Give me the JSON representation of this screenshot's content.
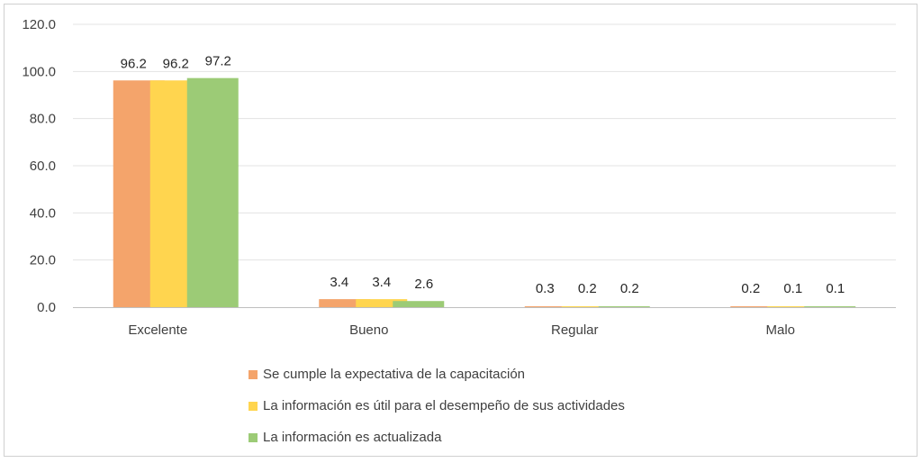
{
  "chart_data": {
    "type": "bar",
    "categories": [
      "Excelente",
      "Bueno",
      "Regular",
      "Malo"
    ],
    "series": [
      {
        "name": "Se cumple la expectativa de la capacitación",
        "color": "#F4A46B",
        "values": [
          96.2,
          3.4,
          0.3,
          0.2
        ]
      },
      {
        "name": "La información es útil para el desempeño de sus actividades",
        "color": "#FFD54F",
        "values": [
          96.2,
          3.4,
          0.2,
          0.1
        ]
      },
      {
        "name": "La información es actualizada",
        "color": "#9CCB76",
        "values": [
          97.2,
          2.6,
          0.2,
          0.1
        ]
      }
    ],
    "value_labels": [
      [
        "96.2",
        "3.4",
        "0.3",
        "0.2"
      ],
      [
        "96.2",
        "3.4",
        "0.2",
        "0.1"
      ],
      [
        "97.2",
        "2.6",
        "0.2",
        "0.1"
      ]
    ],
    "y_ticks": [
      "0.0",
      "20.0",
      "40.0",
      "60.0",
      "80.0",
      "100.0",
      "120.0"
    ],
    "ylim": [
      0,
      120
    ],
    "grid": true,
    "legend_position": "bottom"
  }
}
